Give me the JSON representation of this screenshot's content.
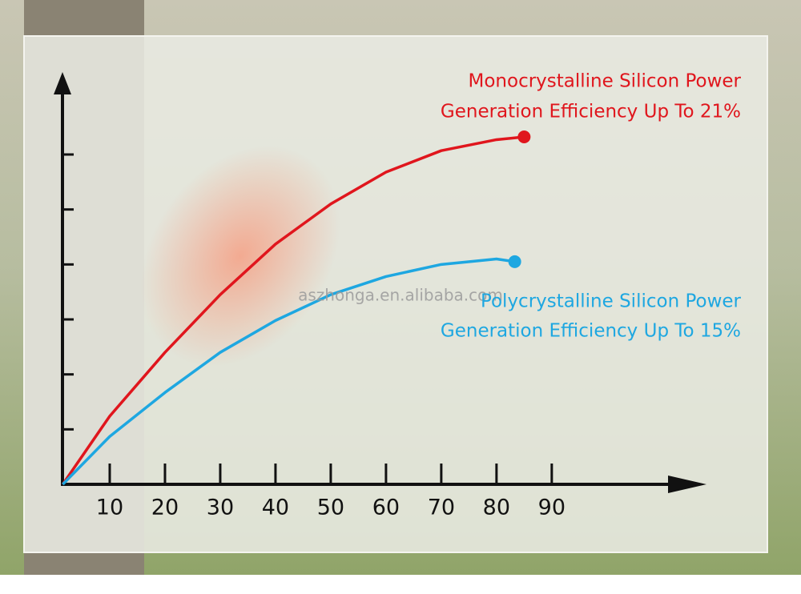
{
  "chart_data": {
    "type": "line",
    "x": [
      1.5,
      10,
      20,
      30,
      40,
      50,
      60,
      70,
      80,
      85
    ],
    "series": [
      {
        "name": "Monocrystalline Silicon Power",
        "color": "#e0161d",
        "x": [
          1.5,
          10,
          20,
          30,
          40,
          50,
          60,
          70,
          80,
          85
        ],
        "values": [
          0,
          1.24,
          2.4,
          3.45,
          4.37,
          5.1,
          5.68,
          6.07,
          6.27,
          6.32
        ]
      },
      {
        "name": "Polycrystalline Silicon Power",
        "color": "#1ea7e1",
        "x": [
          1.5,
          10,
          20,
          30,
          40,
          50,
          60,
          70,
          80,
          83.3
        ],
        "values": [
          0,
          0.87,
          1.67,
          2.4,
          2.98,
          3.45,
          3.78,
          4.0,
          4.1,
          4.05
        ]
      }
    ],
    "annotations": [
      {
        "lines": [
          "Monocrystalline Silicon Power",
          "Generation Efficiency Up To 21%"
        ],
        "color": "#e0161d"
      },
      {
        "lines": [
          "Polycrystalline Silicon Power",
          "Generation Efficiency Up To 15%"
        ],
        "color": "#1ea7e1"
      }
    ],
    "watermark": "aszhonga.en.alibaba.com",
    "xlim": [
      0,
      118
    ],
    "xticks": [
      10,
      20,
      30,
      40,
      50,
      60,
      70,
      80,
      90
    ],
    "ylim": [
      0,
      7.5
    ],
    "yticks": [
      1,
      2,
      3,
      4,
      5,
      6
    ],
    "show_ytick_labels": false,
    "end_markers": true
  }
}
